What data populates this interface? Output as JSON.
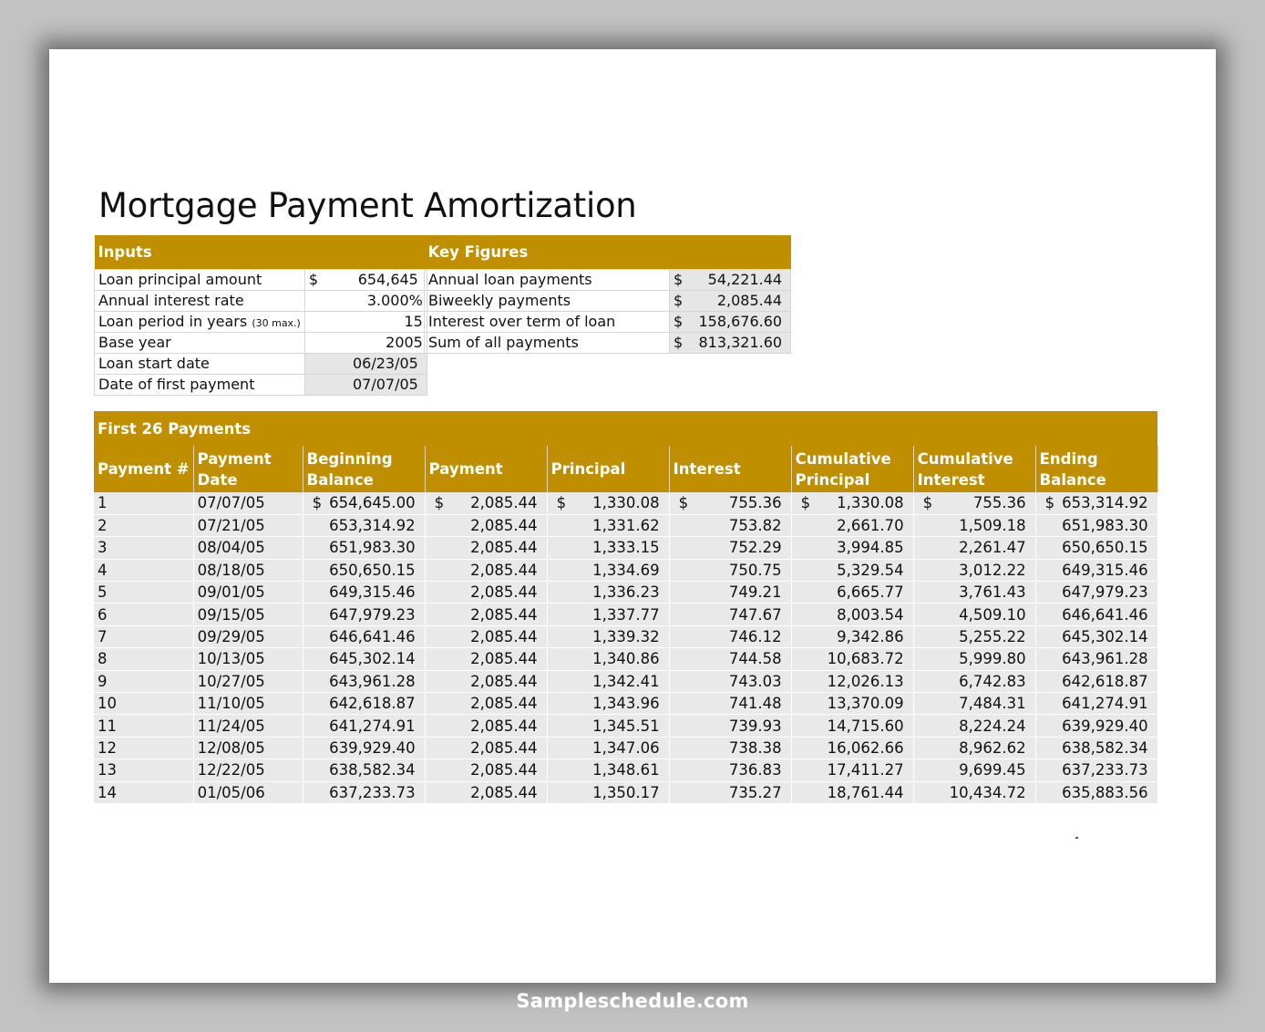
{
  "title": "Mortgage Payment Amortization",
  "accent_color": "#bf8f00",
  "inputs": {
    "header": "Inputs",
    "rows": [
      {
        "label": "Loan principal amount",
        "note": "",
        "currency": "$",
        "value": "654,645"
      },
      {
        "label": "Annual interest rate",
        "note": "",
        "currency": "",
        "value": "3.000%"
      },
      {
        "label": "Loan period in years",
        "note": "(30 max.)",
        "currency": "",
        "value": "15"
      },
      {
        "label": "Base year",
        "note": "",
        "currency": "",
        "value": "2005"
      },
      {
        "label": "Loan start date",
        "note": "",
        "currency": "",
        "value": "06/23/05"
      },
      {
        "label": "Date of first payment",
        "note": "",
        "currency": "",
        "value": "07/07/05"
      }
    ]
  },
  "key_figures": {
    "header": "Key Figures",
    "rows": [
      {
        "label": "Annual loan payments",
        "currency": "$",
        "value": "54,221.44"
      },
      {
        "label": "Biweekly payments",
        "currency": "$",
        "value": "2,085.44"
      },
      {
        "label": "Interest over term of loan",
        "currency": "$",
        "value": "158,676.60"
      },
      {
        "label": "Sum of all payments",
        "currency": "$",
        "value": "813,321.60"
      }
    ]
  },
  "payments": {
    "section_title": "First 26 Payments",
    "columns": [
      [
        "Payment #"
      ],
      [
        "Payment",
        "Date"
      ],
      [
        "Beginning",
        "Balance"
      ],
      [
        "Payment"
      ],
      [
        "Principal"
      ],
      [
        "Interest"
      ],
      [
        "Cumulative",
        "Principal"
      ],
      [
        "Cumulative",
        "Interest"
      ],
      [
        "Ending",
        "Balance"
      ]
    ],
    "currency_symbol": "$",
    "rows": [
      [
        "1",
        "07/07/05",
        "654,645.00",
        "2,085.44",
        "1,330.08",
        "755.36",
        "1,330.08",
        "755.36",
        "653,314.92"
      ],
      [
        "2",
        "07/21/05",
        "653,314.92",
        "2,085.44",
        "1,331.62",
        "753.82",
        "2,661.70",
        "1,509.18",
        "651,983.30"
      ],
      [
        "3",
        "08/04/05",
        "651,983.30",
        "2,085.44",
        "1,333.15",
        "752.29",
        "3,994.85",
        "2,261.47",
        "650,650.15"
      ],
      [
        "4",
        "08/18/05",
        "650,650.15",
        "2,085.44",
        "1,334.69",
        "750.75",
        "5,329.54",
        "3,012.22",
        "649,315.46"
      ],
      [
        "5",
        "09/01/05",
        "649,315.46",
        "2,085.44",
        "1,336.23",
        "749.21",
        "6,665.77",
        "3,761.43",
        "647,979.23"
      ],
      [
        "6",
        "09/15/05",
        "647,979.23",
        "2,085.44",
        "1,337.77",
        "747.67",
        "8,003.54",
        "4,509.10",
        "646,641.46"
      ],
      [
        "7",
        "09/29/05",
        "646,641.46",
        "2,085.44",
        "1,339.32",
        "746.12",
        "9,342.86",
        "5,255.22",
        "645,302.14"
      ],
      [
        "8",
        "10/13/05",
        "645,302.14",
        "2,085.44",
        "1,340.86",
        "744.58",
        "10,683.72",
        "5,999.80",
        "643,961.28"
      ],
      [
        "9",
        "10/27/05",
        "643,961.28",
        "2,085.44",
        "1,342.41",
        "743.03",
        "12,026.13",
        "6,742.83",
        "642,618.87"
      ],
      [
        "10",
        "11/10/05",
        "642,618.87",
        "2,085.44",
        "1,343.96",
        "741.48",
        "13,370.09",
        "7,484.31",
        "641,274.91"
      ],
      [
        "11",
        "11/24/05",
        "641,274.91",
        "2,085.44",
        "1,345.51",
        "739.93",
        "14,715.60",
        "8,224.24",
        "639,929.40"
      ],
      [
        "12",
        "12/08/05",
        "639,929.40",
        "2,085.44",
        "1,347.06",
        "738.38",
        "16,062.66",
        "8,962.62",
        "638,582.34"
      ],
      [
        "13",
        "12/22/05",
        "638,582.34",
        "2,085.44",
        "1,348.61",
        "736.83",
        "17,411.27",
        "9,699.45",
        "637,233.73"
      ],
      [
        "14",
        "01/05/06",
        "637,233.73",
        "2,085.44",
        "1,350.17",
        "735.27",
        "18,761.44",
        "10,434.72",
        "635,883.56"
      ]
    ]
  },
  "watermark": "Sampleschedule.com"
}
